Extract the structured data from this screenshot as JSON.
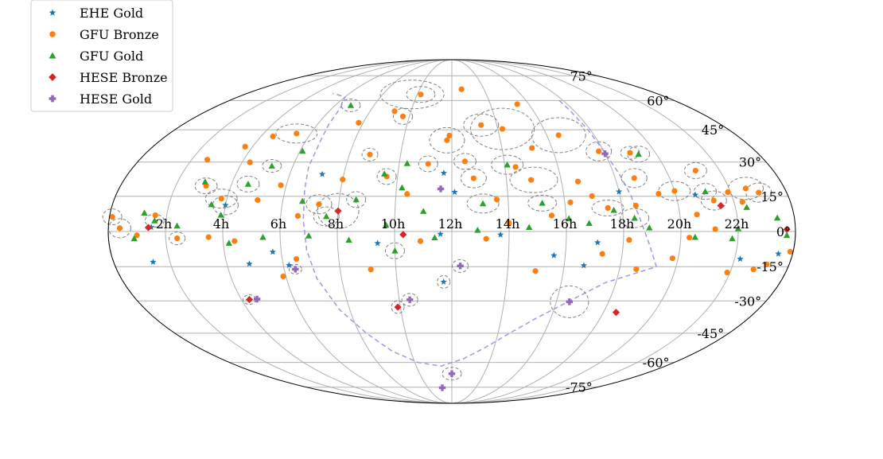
{
  "chart_data": {
    "type": "scatter",
    "projection": "mollweide",
    "grid": true,
    "legend_position": "top-left",
    "x_tick_labels": [
      "22h",
      "20h",
      "18h",
      "16h",
      "14h",
      "12h",
      "10h",
      "8h",
      "6h",
      "4h",
      "2h"
    ],
    "x_tick_values": [
      22,
      20,
      18,
      16,
      14,
      12,
      10,
      8,
      6,
      4,
      2
    ],
    "y_tick_labels": [
      "75°",
      "60°",
      "45°",
      "30°",
      "15°",
      "0°",
      "-15°",
      "-30°",
      "-45°",
      "-60°",
      "-75°"
    ],
    "y_tick_values": [
      75,
      60,
      45,
      30,
      15,
      0,
      -15,
      -30,
      -45,
      -60,
      -75
    ],
    "galactic_plane_color": "#9999ee",
    "series": [
      {
        "name": "EHE Gold",
        "marker": "star",
        "color": "#1f77b4",
        "points": [
          [
            20.7,
            15.6
          ],
          [
            18.0,
            17.0
          ],
          [
            17.1,
            -4.7
          ],
          [
            16.7,
            -14.5
          ],
          [
            15.6,
            -10.2
          ],
          [
            13.7,
            -1.4
          ],
          [
            11.6,
            -1.1
          ],
          [
            11.7,
            25.1
          ],
          [
            11.7,
            -21.6
          ],
          [
            9.4,
            -5.0
          ],
          [
            6.2,
            -14.4
          ],
          [
            5.7,
            -8.7
          ],
          [
            4.8,
            -13.8
          ],
          [
            4.0,
            11.2
          ],
          [
            1.4,
            -13.0
          ],
          [
            1.5,
            1.8
          ],
          [
            7.2,
            24.6
          ],
          [
            22.2,
            -11.7
          ],
          [
            23.5,
            -9.5
          ],
          [
            12.1,
            16.8
          ]
        ]
      },
      {
        "name": "GFU Bronze",
        "marker": "circle",
        "color": "#ff7f0e",
        "points": [
          [
            23.0,
            16.6
          ],
          [
            22.6,
            18.4
          ],
          [
            22.3,
            12.6
          ],
          [
            21.9,
            16.8
          ],
          [
            21.3,
            13.2
          ],
          [
            20.6,
            7.2
          ],
          [
            20.0,
            17.3
          ],
          [
            19.4,
            16.1
          ],
          [
            18.7,
            22.9
          ],
          [
            18.5,
            11.0
          ],
          [
            17.5,
            10.0
          ],
          [
            17.0,
            15.1
          ],
          [
            16.6,
            21.4
          ],
          [
            16.2,
            12.4
          ],
          [
            15.5,
            6.8
          ],
          [
            14.9,
            22.1
          ],
          [
            14.4,
            27.8
          ],
          [
            13.6,
            13.6
          ],
          [
            12.8,
            22.8
          ],
          [
            12.5,
            30.3
          ],
          [
            11.8,
            40.0
          ],
          [
            11.1,
            29.2
          ],
          [
            10.4,
            16.0
          ],
          [
            9.6,
            23.6
          ],
          [
            8.8,
            33.4
          ],
          [
            8.0,
            22.3
          ],
          [
            7.3,
            11.6
          ],
          [
            6.6,
            6.6
          ],
          [
            5.8,
            19.8
          ],
          [
            5.1,
            13.4
          ],
          [
            4.3,
            29.9
          ],
          [
            3.8,
            14.0
          ],
          [
            3.1,
            19.5
          ],
          [
            2.6,
            31.1
          ],
          [
            1.6,
            6.9
          ],
          [
            1.0,
            -1.6
          ],
          [
            0.4,
            1.4
          ],
          [
            0.1,
            6.2
          ],
          [
            23.9,
            -8.6
          ],
          [
            23.2,
            -14.0
          ],
          [
            22.8,
            -16.2
          ],
          [
            21.9,
            -17.5
          ],
          [
            19.8,
            -11.4
          ],
          [
            18.6,
            -16.1
          ],
          [
            17.3,
            -9.5
          ],
          [
            15.0,
            -16.9
          ],
          [
            13.2,
            -3.1
          ],
          [
            10.9,
            -4.1
          ],
          [
            9.1,
            -16.2
          ],
          [
            6.5,
            -11.7
          ],
          [
            5.9,
            -19.2
          ],
          [
            4.4,
            -4.1
          ],
          [
            3.5,
            -2.4
          ],
          [
            2.4,
            -2.9
          ],
          [
            16.5,
            42.4
          ],
          [
            15.2,
            36.4
          ],
          [
            14.2,
            45.4
          ],
          [
            13.3,
            47.3
          ],
          [
            11.9,
            42.2
          ],
          [
            9.7,
            51.6
          ],
          [
            9.2,
            54.3
          ],
          [
            7.8,
            48.4
          ],
          [
            5.4,
            43.2
          ],
          [
            4.5,
            41.8
          ],
          [
            3.7,
            37.0
          ],
          [
            21.1,
            26.2
          ],
          [
            19.0,
            34.2
          ],
          [
            17.8,
            34.9
          ],
          [
            15.4,
            58.0
          ],
          [
            12.6,
            66.4
          ],
          [
            10.2,
            63.4
          ],
          [
            18.2,
            -3.6
          ],
          [
            20.3,
            -2.6
          ],
          [
            21.2,
            1.0
          ],
          [
            14.0,
            3.6
          ]
        ]
      },
      {
        "name": "GFU Gold",
        "marker": "triangle",
        "color": "#2ca02c",
        "points": [
          [
            23.4,
            5.8
          ],
          [
            22.4,
            10.3
          ],
          [
            21.8,
            -3.0
          ],
          [
            21.1,
            17.1
          ],
          [
            19.3,
            33.6
          ],
          [
            18.4,
            5.7
          ],
          [
            17.7,
            9.1
          ],
          [
            16.1,
            5.5
          ],
          [
            15.2,
            12.1
          ],
          [
            14.1,
            28.8
          ],
          [
            13.1,
            11.9
          ],
          [
            11.4,
            -2.6
          ],
          [
            10.3,
            29.4
          ],
          [
            10.2,
            18.7
          ],
          [
            9.5,
            24.8
          ],
          [
            8.6,
            13.6
          ],
          [
            7.6,
            6.4
          ],
          [
            6.8,
            57.4
          ],
          [
            6.1,
            35.0
          ],
          [
            5.2,
            28.3
          ],
          [
            4.6,
            20.3
          ],
          [
            3.9,
            7.0
          ],
          [
            3.0,
            21.3
          ],
          [
            2.4,
            2.4
          ],
          [
            1.6,
            4.6
          ],
          [
            0.9,
            -3.0
          ],
          [
            23.7,
            -1.6
          ],
          [
            10.0,
            -8.2
          ],
          [
            8.4,
            -3.6
          ],
          [
            7.0,
            -1.8
          ],
          [
            5.4,
            -2.4
          ],
          [
            4.2,
            -4.9
          ],
          [
            12.9,
            0.6
          ],
          [
            14.7,
            1.8
          ],
          [
            16.8,
            3.5
          ],
          [
            18.9,
            1.6
          ],
          [
            20.5,
            -2.4
          ],
          [
            22.0,
            1.3
          ],
          [
            9.7,
            2.8
          ],
          [
            6.7,
            12.9
          ],
          [
            3.5,
            11.5
          ],
          [
            1.2,
            7.9
          ],
          [
            11.0,
            8.6
          ]
        ]
      },
      {
        "name": "HESE Bronze",
        "marker": "diamond",
        "color": "#d62728",
        "points": [
          [
            21.5,
            11.0
          ],
          [
            18.5,
            -35.2
          ],
          [
            10.3,
            -1.3
          ],
          [
            9.9,
            -32.8
          ],
          [
            8.0,
            8.7
          ],
          [
            4.3,
            -29.4
          ],
          [
            1.4,
            1.7
          ],
          [
            23.7,
            0.9
          ]
        ]
      },
      {
        "name": "HESE Gold",
        "marker": "plus",
        "color": "#9467bd",
        "points": [
          [
            18.0,
            33.8
          ],
          [
            16.5,
            -30.4
          ],
          [
            12.3,
            -14.7
          ],
          [
            11.6,
            18.2
          ],
          [
            10.4,
            -29.5
          ],
          [
            6.4,
            -16.1
          ],
          [
            4.6,
            -29.2
          ],
          [
            12.0,
            -66.4
          ],
          [
            11.2,
            -75.4
          ]
        ]
      }
    ],
    "uncertainty_regions": [
      [
        14.2,
        45.4,
        40,
        26
      ],
      [
        9.7,
        63.4,
        40,
        18
      ],
      [
        16.5,
        42.4,
        34,
        22
      ],
      [
        15.0,
        22.1,
        30,
        16
      ],
      [
        13.3,
        47.3,
        22,
        14
      ],
      [
        11.8,
        40.0,
        22,
        16
      ],
      [
        22.6,
        18.4,
        22,
        14
      ],
      [
        16.5,
        -30.4,
        24,
        20
      ],
      [
        8.0,
        8.7,
        26,
        22
      ],
      [
        20.0,
        17.3,
        20,
        12
      ],
      [
        3.8,
        14.0,
        20,
        12
      ],
      [
        4.0,
        11.2,
        16,
        12
      ],
      [
        5.4,
        43.2,
        26,
        12
      ],
      [
        12.0,
        -66.4,
        12,
        8
      ],
      [
        10.2,
        63.4,
        18,
        10
      ],
      [
        13.1,
        11.9,
        20,
        12
      ],
      [
        9.6,
        23.6,
        12,
        10
      ],
      [
        12.8,
        22.8,
        16,
        12
      ],
      [
        17.5,
        10.0,
        20,
        10
      ],
      [
        21.3,
        13.2,
        16,
        12
      ],
      [
        3.1,
        19.5,
        14,
        10
      ],
      [
        0.4,
        1.4,
        14,
        12
      ],
      [
        1.6,
        4.6,
        12,
        8
      ],
      [
        18.7,
        22.9,
        16,
        12
      ],
      [
        10.4,
        -29.5,
        10,
        8
      ],
      [
        12.3,
        -14.7,
        10,
        8
      ],
      [
        11.7,
        -21.6,
        8,
        8
      ],
      [
        9.9,
        -32.8,
        8,
        8
      ],
      [
        6.4,
        -16.1,
        8,
        6
      ],
      [
        4.3,
        -29.4,
        8,
        6
      ],
      [
        7.6,
        6.4,
        16,
        12
      ],
      [
        6.8,
        57.4,
        12,
        8
      ],
      [
        12.5,
        30.3,
        14,
        10
      ],
      [
        11.1,
        29.2,
        12,
        10
      ],
      [
        14.1,
        28.8,
        20,
        12
      ],
      [
        19.3,
        33.6,
        14,
        10
      ],
      [
        17.8,
        34.9,
        16,
        12
      ],
      [
        15.2,
        12.1,
        18,
        10
      ],
      [
        10.0,
        -8.2,
        12,
        10
      ],
      [
        18.4,
        5.7,
        18,
        12
      ],
      [
        21.1,
        17.1,
        14,
        10
      ],
      [
        23.0,
        16.6,
        16,
        12
      ],
      [
        0.1,
        6.2,
        12,
        10
      ],
      [
        2.4,
        -2.9,
        10,
        8
      ],
      [
        4.6,
        20.3,
        14,
        10
      ],
      [
        5.2,
        28.3,
        12,
        8
      ],
      [
        7.3,
        11.6,
        16,
        12
      ],
      [
        8.6,
        13.6,
        12,
        10
      ],
      [
        9.7,
        51.6,
        12,
        10
      ],
      [
        8.8,
        33.4,
        10,
        8
      ],
      [
        19.0,
        34.2,
        12,
        8
      ],
      [
        21.1,
        26.2,
        14,
        10
      ]
    ],
    "galactic_plane": [
      [
        17.8,
        60
      ],
      [
        17.8,
        55
      ],
      [
        17.9,
        45
      ],
      [
        18.0,
        35
      ],
      [
        18.2,
        25
      ],
      [
        18.4,
        15
      ],
      [
        18.6,
        5
      ],
      [
        18.9,
        -5
      ],
      [
        19.3,
        -15
      ],
      [
        17.6,
        -22
      ],
      [
        16.5,
        -30
      ],
      [
        15.4,
        -38
      ],
      [
        14.5,
        -45
      ],
      [
        13.6,
        -52
      ],
      [
        12.6,
        -58
      ],
      [
        11.4,
        -62
      ],
      [
        10.2,
        -60
      ],
      [
        9.1,
        -54
      ],
      [
        8.3,
        -45
      ],
      [
        7.6,
        -34
      ],
      [
        7.1,
        -20
      ],
      [
        6.9,
        -8
      ],
      [
        6.8,
        5
      ],
      [
        6.7,
        18
      ],
      [
        6.6,
        28
      ],
      [
        6.6,
        40
      ],
      [
        6.5,
        48
      ],
      [
        6.4,
        56
      ],
      [
        6.0,
        62
      ],
      [
        5.0,
        64
      ]
    ]
  }
}
